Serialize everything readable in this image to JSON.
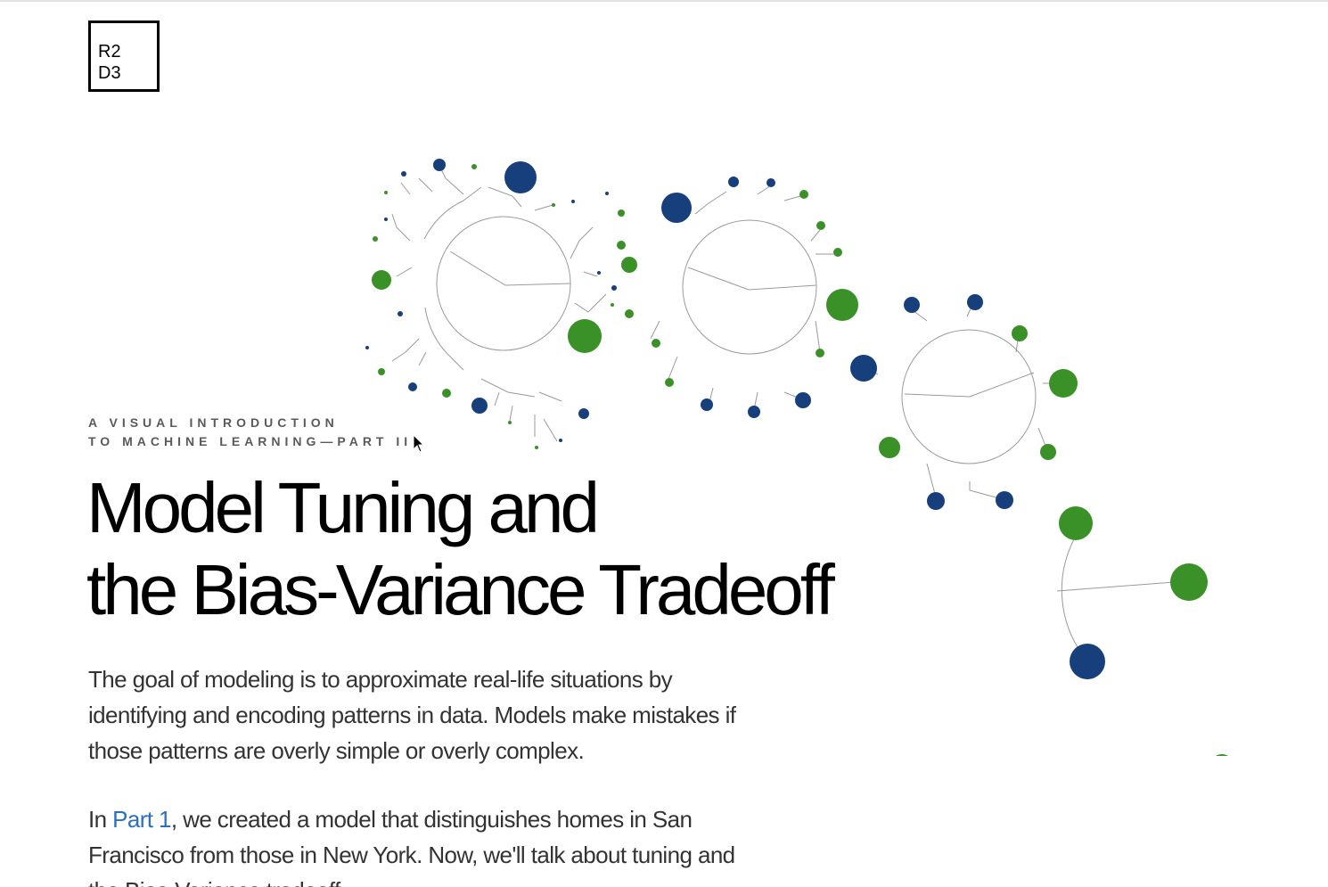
{
  "logo": {
    "line1": "R2",
    "line2": "D3"
  },
  "header": {
    "kicker_line1": "A VISUAL INTRODUCTION",
    "kicker_line2": "TO MACHINE LEARNING—PART II",
    "title_line1": "Model Tuning and",
    "title_line2": "the Bias-Variance Tradeoff"
  },
  "intro": {
    "paragraph1": "The goal of modeling is to approximate real-life situations by identifying and encoding patterns in data. Models make mistakes if those patterns are overly simple or overly complex.",
    "paragraph2_before_link": "In ",
    "paragraph2_link": "Part 1",
    "paragraph2_after_link": ", we created a model that distinguishes homes in San Francisco from those in New York. Now, we'll talk about tuning and the Bias-Variance tradeoff."
  },
  "colors": {
    "green": "#3a9128",
    "blue": "#163f7b",
    "link": "#2b6fbe",
    "tree_line": "#9a9a9a"
  }
}
